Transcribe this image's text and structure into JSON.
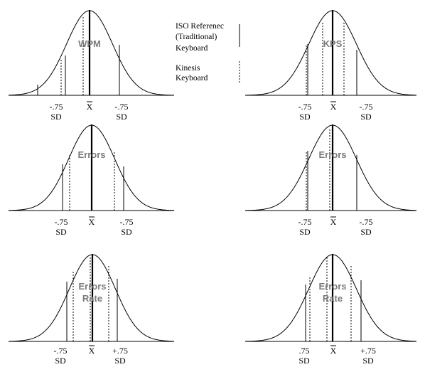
{
  "legend": {
    "iso_line1": "ISO Referenec",
    "iso_line2": "(Traditional)",
    "iso_line3": "Keyboard",
    "kin_line1": "Kinesis",
    "kin_line2": "Keyboard"
  },
  "panels": [
    {
      "title": [
        "WPM"
      ],
      "ticks": [
        {
          "val": "-.75",
          "unit": "SD"
        },
        {
          "val": "X",
          "unit": ""
        },
        {
          "val": "-.75",
          "unit": "SD"
        }
      ]
    },
    {
      "title": [
        "KPS"
      ],
      "ticks": [
        {
          "val": "-.75",
          "unit": "SD"
        },
        {
          "val": "X",
          "unit": ""
        },
        {
          "val": "-.75",
          "unit": "SD"
        }
      ]
    },
    {
      "title": [
        "Errors"
      ],
      "ticks": [
        {
          "val": "-.75",
          "unit": "SD"
        },
        {
          "val": "X",
          "unit": ""
        },
        {
          "val": "-.75",
          "unit": "SD"
        }
      ]
    },
    {
      "title": [
        "Errors"
      ],
      "ticks": [
        {
          "val": "-.75",
          "unit": "SD"
        },
        {
          "val": "X",
          "unit": ""
        },
        {
          "val": "-.75",
          "unit": "SD"
        }
      ]
    },
    {
      "title": [
        "Errors",
        "Rate"
      ],
      "ticks": [
        {
          "val": "-.75",
          "unit": "SD"
        },
        {
          "val": "X",
          "unit": ""
        },
        {
          "val": "+.75",
          "unit": "SD"
        }
      ]
    },
    {
      "title": [
        "Errors",
        "Rate"
      ],
      "ticks": [
        {
          "val": ".75",
          "unit": "SD"
        },
        {
          "val": "X",
          "unit": ""
        },
        {
          "val": "+.75",
          "unit": "SD"
        }
      ]
    }
  ]
}
